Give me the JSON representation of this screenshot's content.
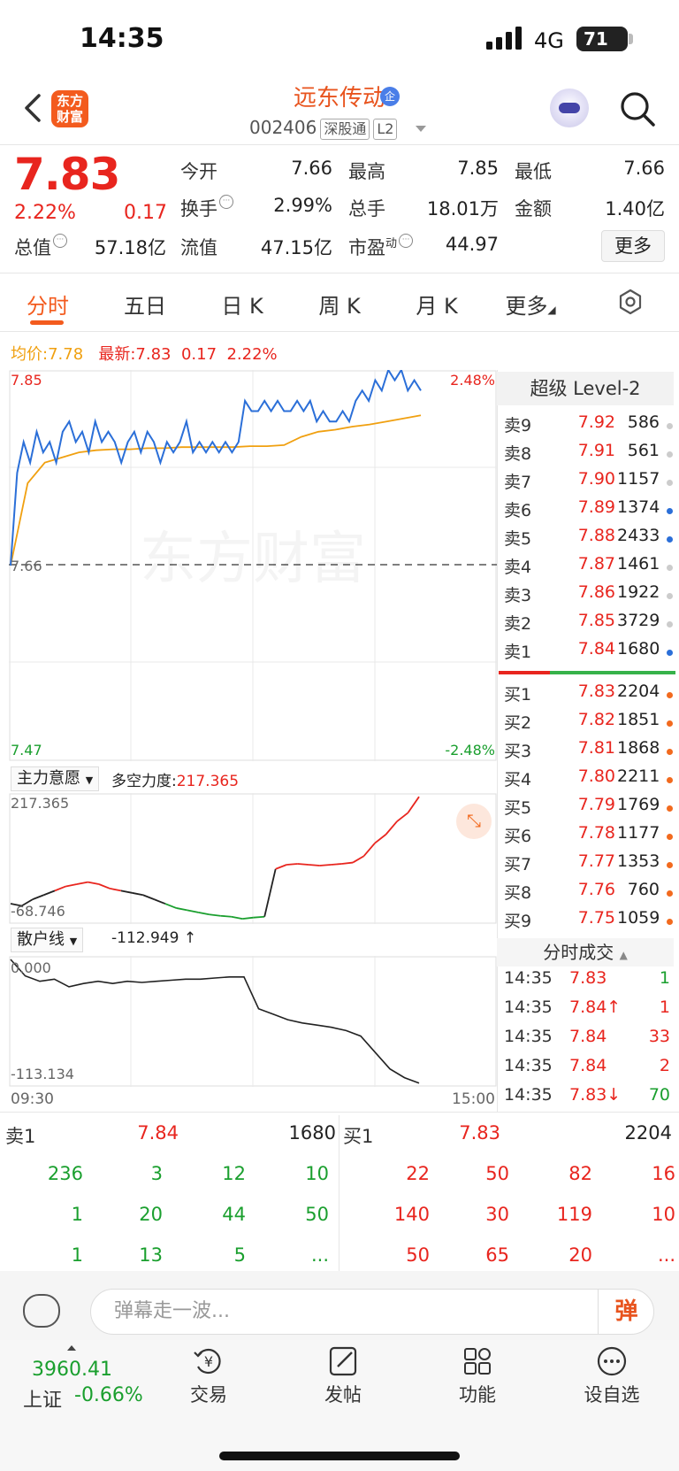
{
  "status_bar": {
    "time": "14:35",
    "network": "4G",
    "battery": "71"
  },
  "header": {
    "logo_text": "东方\n财富",
    "stock_name": "远东传动",
    "name_badge": "企",
    "stock_code": "002406",
    "tags": [
      "深股通",
      "L2"
    ]
  },
  "quote": {
    "price": "7.83",
    "change_pct": "2.22%",
    "change": "0.17",
    "total_value_label": "总值",
    "total_value": "57.18亿",
    "open_label": "今开",
    "open": "7.66",
    "high_label": "最高",
    "high": "7.85",
    "low_label": "最低",
    "low": "7.66",
    "turnover_label": "换手",
    "turnover": "2.99%",
    "volume_label": "总手",
    "volume": "18.01万",
    "amount_label": "金额",
    "amount": "1.40亿",
    "float_label": "流值",
    "float": "47.15亿",
    "pe_label": "市盈",
    "pe_sup": "动",
    "pe": "44.97",
    "more_label": "更多"
  },
  "tabs": [
    "分时",
    "五日",
    "日 K",
    "周 K",
    "月 K",
    "更多"
  ],
  "chart": {
    "avg_label": "均价:",
    "avg_value": "7.78",
    "latest_label": "最新:",
    "latest_value": "7.83",
    "latest_change": "0.17",
    "latest_pct": "2.22%",
    "price_top": "7.85",
    "price_mid": "7.66",
    "price_bottom": "7.47",
    "pct_top": "2.48%",
    "pct_bottom": "-2.48%",
    "watermark": "东方财富",
    "indicator1_name": "主力意愿",
    "indicator1_extra_label": "多空力度:",
    "indicator1_extra_value": "217.365",
    "indicator1_max": "217.365",
    "indicator1_min": "-68.746",
    "indicator2_name": "散户线",
    "indicator2_value": "-112.949 ↑",
    "indicator2_max": "0.000",
    "indicator2_min": "-113.134",
    "time_start": "09:30",
    "time_end": "15:00"
  },
  "chart_data": [
    {
      "type": "line",
      "x_range": [
        "09:30",
        "15:00"
      ],
      "ylim": [
        7.47,
        7.85
      ],
      "reference_price": 7.66,
      "series": [],
      "note_points": [
        7.66,
        7.75,
        7.78,
        7.76,
        7.79,
        7.77,
        7.78,
        7.76,
        7.79,
        7.8,
        7.78,
        7.79,
        7.77,
        7.8,
        7.78,
        7.79,
        7.78,
        7.76,
        7.78,
        7.79,
        7.77,
        7.79,
        7.78,
        7.76,
        7.78,
        7.77,
        7.78,
        7.8,
        7.77,
        7.78,
        7.77,
        7.78,
        7.77,
        7.78,
        7.77,
        7.78,
        7.82,
        7.81,
        7.81,
        7.82,
        7.81,
        7.82,
        7.81,
        7.81,
        7.82,
        7.81,
        7.82,
        7.8,
        7.81,
        7.8,
        7.8,
        7.81,
        7.8,
        7.82,
        7.83,
        7.82,
        7.84,
        7.83,
        7.85,
        7.84,
        7.85,
        7.83,
        7.84,
        7.83
      ],
      "avg_points": [
        7.66,
        7.74,
        7.76,
        7.765,
        7.77,
        7.772,
        7.773,
        7.773,
        7.774,
        7.774,
        7.775,
        7.775,
        7.775,
        7.775,
        7.776,
        7.776,
        7.777,
        7.785,
        7.79,
        7.792,
        7.795,
        7.797,
        7.8,
        7.803,
        7.806
      ]
    },
    {
      "type": "line",
      "ylim": [
        -68.746,
        217.365
      ],
      "series": [],
      "points": [
        -30,
        -35,
        -20,
        -10,
        0,
        10,
        15,
        20,
        15,
        5,
        0,
        -5,
        -10,
        -20,
        -30,
        -40,
        -45,
        -50,
        -55,
        -58,
        -60,
        -65,
        -62,
        -60,
        50,
        60,
        62,
        60,
        58,
        60,
        62,
        65,
        80,
        110,
        130,
        160,
        180,
        217
      ]
    },
    {
      "type": "line",
      "ylim": [
        -113.134,
        0
      ],
      "series": [],
      "points": [
        0,
        -15,
        -20,
        -18,
        -25,
        -22,
        -20,
        -22,
        -20,
        -21,
        -20,
        -19,
        -18,
        -18,
        -17,
        -16,
        -16,
        -45,
        -50,
        -55,
        -58,
        -60,
        -62,
        -65,
        -70,
        -85,
        -100,
        -108,
        -113
      ]
    }
  ],
  "order_book": {
    "title": "超级 Level-2",
    "sells": [
      {
        "label": "卖9",
        "price": "7.92",
        "vol": "586",
        "dot": "#cccccc"
      },
      {
        "label": "卖8",
        "price": "7.91",
        "vol": "561",
        "dot": "#cccccc"
      },
      {
        "label": "卖7",
        "price": "7.90",
        "vol": "1157",
        "dot": "#cccccc"
      },
      {
        "label": "卖6",
        "price": "7.89",
        "vol": "1374",
        "dot": "#2b6fd8"
      },
      {
        "label": "卖5",
        "price": "7.88",
        "vol": "2433",
        "dot": "#2b6fd8"
      },
      {
        "label": "卖4",
        "price": "7.87",
        "vol": "1461",
        "dot": "#cccccc"
      },
      {
        "label": "卖3",
        "price": "7.86",
        "vol": "1922",
        "dot": "#cccccc"
      },
      {
        "label": "卖2",
        "price": "7.85",
        "vol": "3729",
        "dot": "#cccccc"
      },
      {
        "label": "卖1",
        "price": "7.84",
        "vol": "1680",
        "dot": "#2b6fd8"
      }
    ],
    "buys": [
      {
        "label": "买1",
        "price": "7.83",
        "vol": "2204",
        "dot": "#f26a1e"
      },
      {
        "label": "买2",
        "price": "7.82",
        "vol": "1851",
        "dot": "#f26a1e"
      },
      {
        "label": "买3",
        "price": "7.81",
        "vol": "1868",
        "dot": "#f26a1e"
      },
      {
        "label": "买4",
        "price": "7.80",
        "vol": "2211",
        "dot": "#f26a1e"
      },
      {
        "label": "买5",
        "price": "7.79",
        "vol": "1769",
        "dot": "#f26a1e"
      },
      {
        "label": "买6",
        "price": "7.78",
        "vol": "1177",
        "dot": "#f26a1e"
      },
      {
        "label": "买7",
        "price": "7.77",
        "vol": "1353",
        "dot": "#f26a1e"
      },
      {
        "label": "买8",
        "price": "7.76",
        "vol": "760",
        "dot": "#f26a1e"
      },
      {
        "label": "买9",
        "price": "7.75",
        "vol": "1059",
        "dot": "#f26a1e"
      }
    ]
  },
  "trades": {
    "title": "分时成交",
    "rows": [
      {
        "time": "14:35",
        "price": "7.83",
        "vol": "1",
        "vol_color": "#1a9f2e"
      },
      {
        "time": "14:35",
        "price": "7.84↑",
        "vol": "1",
        "vol_color": "#e8251e"
      },
      {
        "time": "14:35",
        "price": "7.84",
        "vol": "33",
        "vol_color": "#e8251e"
      },
      {
        "time": "14:35",
        "price": "7.84",
        "vol": "2",
        "vol_color": "#e8251e"
      },
      {
        "time": "14:35",
        "price": "7.83↓",
        "vol": "70",
        "vol_color": "#1a9f2e"
      }
    ]
  },
  "book_detail": {
    "sell_label": "卖1",
    "sell_price": "7.84",
    "sell_vol": "1680",
    "buy_label": "买1",
    "buy_price": "7.83",
    "buy_vol": "2204",
    "sell_grid": [
      [
        "236",
        "3",
        "12",
        "10"
      ],
      [
        "1",
        "20",
        "44",
        "50"
      ],
      [
        "1",
        "13",
        "5",
        "..."
      ]
    ],
    "buy_grid": [
      [
        "22",
        "50",
        "82",
        "16"
      ],
      [
        "140",
        "30",
        "119",
        "10"
      ],
      [
        "50",
        "65",
        "20",
        "..."
      ]
    ]
  },
  "comment": {
    "placeholder": "弹幕走一波...",
    "toggle": "弹"
  },
  "bottom_nav": {
    "index_value": "3960.41",
    "index_name": "上证",
    "index_change": "-0.66%",
    "items": [
      "交易",
      "发帖",
      "功能",
      "设自选"
    ]
  }
}
